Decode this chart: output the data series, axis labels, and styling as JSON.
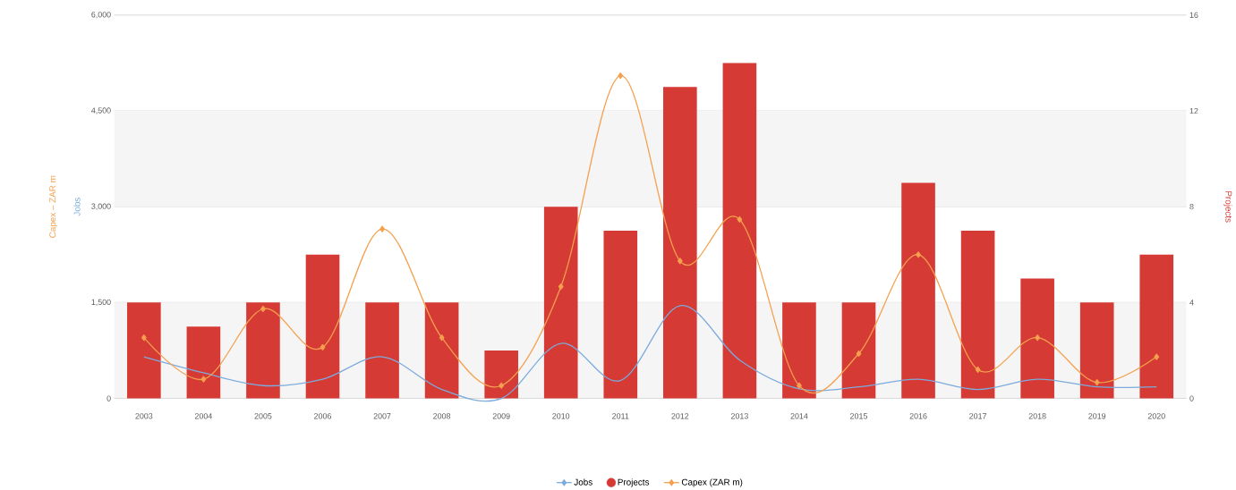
{
  "chart_data": {
    "type": "bar",
    "ylabel": "Capex – ZAR m",
    "y2label": "Projects",
    "annotations": [
      "Jobs"
    ],
    "categories": [
      "2003",
      "2004",
      "2005",
      "2006",
      "2007",
      "2008",
      "2009",
      "2010",
      "2011",
      "2012",
      "2013",
      "2014",
      "2015",
      "2016",
      "2017",
      "2018",
      "2019",
      "2020"
    ],
    "series": [
      {
        "name": "Jobs",
        "type": "line",
        "axis": "y",
        "color": "#7cabdc",
        "marker": "none",
        "values": [
          650,
          400,
          200,
          300,
          650,
          140,
          0,
          860,
          280,
          1450,
          600,
          150,
          180,
          300,
          140,
          300,
          180,
          180
        ]
      },
      {
        "name": "Projects",
        "axis": "y2",
        "color": "#d63a35",
        "values": [
          4,
          3,
          4,
          6,
          4,
          4,
          2,
          8,
          7,
          13,
          14,
          4,
          4,
          9,
          7,
          5,
          4,
          6
        ]
      },
      {
        "name": "Capex (ZAR m)",
        "type": "line",
        "axis": "y",
        "color": "#f4a04e",
        "marker": "diamond",
        "values": [
          950,
          300,
          1400,
          800,
          2650,
          950,
          200,
          1750,
          5050,
          2150,
          2800,
          200,
          700,
          2250,
          450,
          950,
          250,
          650
        ]
      }
    ],
    "ylim": [
      0,
      6000
    ],
    "yticks": [
      0,
      {
        "value": 1500,
        "label": "1,500"
      },
      {
        "value": 3000,
        "label": "3,000"
      },
      {
        "value": 4500,
        "label": "4,500"
      },
      {
        "value": 6000,
        "label": "6,000"
      }
    ],
    "y2lim": [
      0,
      16
    ],
    "y2ticks": [
      0,
      4,
      8,
      12,
      16
    ],
    "bands": [
      {
        "axis": "y",
        "from": 0,
        "to": 1500,
        "color": "#f5f5f5"
      },
      {
        "axis": "y",
        "from": 3000,
        "to": 4500,
        "color": "#f5f5f5"
      }
    ],
    "grid": "y",
    "legend": "bottom"
  }
}
